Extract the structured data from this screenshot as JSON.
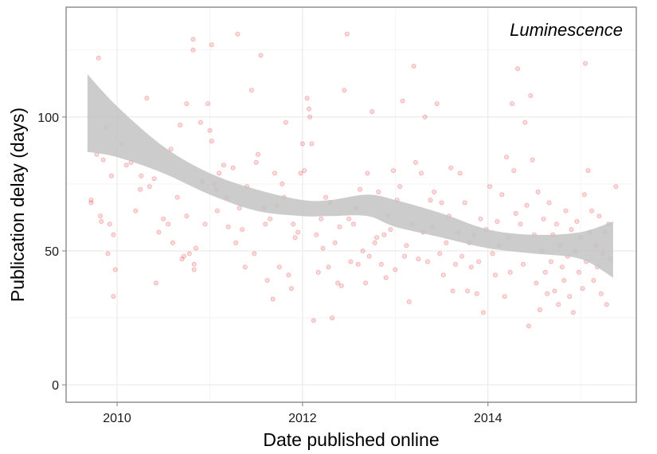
{
  "chart_data": {
    "type": "scatter",
    "title": "",
    "annotation": "Luminescence",
    "xlabel": "Date published online",
    "ylabel": "Publication delay (days)",
    "xlim": [
      2009.45,
      2015.6
    ],
    "ylim": [
      -6.5,
      141
    ],
    "xticks": [
      {
        "value": 2010,
        "label": "2010"
      },
      {
        "value": 2012,
        "label": "2012"
      },
      {
        "value": 2014,
        "label": "2014"
      }
    ],
    "yticks": [
      {
        "value": 0,
        "label": "0"
      },
      {
        "value": 50,
        "label": "50"
      },
      {
        "value": 100,
        "label": "100"
      }
    ],
    "grid": true,
    "point_color": "#e8363b",
    "band_color": "#c3c3c3",
    "smooth_band": {
      "x": [
        2009.68,
        2010.0,
        2010.5,
        2011.0,
        2011.5,
        2012.0,
        2012.3,
        2012.7,
        2013.0,
        2013.5,
        2014.0,
        2014.5,
        2015.0,
        2015.35
      ],
      "upper": [
        116,
        104,
        89,
        79,
        73,
        69,
        69,
        71,
        69,
        64,
        58,
        56,
        57,
        61
      ],
      "lower": [
        87,
        85,
        79,
        71,
        65,
        63,
        63,
        63,
        59,
        55,
        51,
        49,
        47,
        40
      ]
    },
    "points": [
      [
        2009.72,
        69
      ],
      [
        2009.72,
        68
      ],
      [
        2009.78,
        86
      ],
      [
        2009.8,
        122
      ],
      [
        2009.82,
        63
      ],
      [
        2009.83,
        61
      ],
      [
        2009.85,
        84
      ],
      [
        2009.88,
        96
      ],
      [
        2009.9,
        49
      ],
      [
        2009.92,
        60
      ],
      [
        2009.94,
        78
      ],
      [
        2009.96,
        33
      ],
      [
        2009.96,
        56
      ],
      [
        2009.98,
        43
      ],
      [
        2010.05,
        90
      ],
      [
        2010.1,
        82
      ],
      [
        2010.15,
        83
      ],
      [
        2010.2,
        65
      ],
      [
        2010.25,
        73
      ],
      [
        2010.26,
        78
      ],
      [
        2010.32,
        107
      ],
      [
        2010.35,
        74
      ],
      [
        2010.4,
        77
      ],
      [
        2010.42,
        38
      ],
      [
        2010.45,
        57
      ],
      [
        2010.5,
        62
      ],
      [
        2010.55,
        60
      ],
      [
        2010.58,
        88
      ],
      [
        2010.6,
        53
      ],
      [
        2010.65,
        70
      ],
      [
        2010.68,
        97
      ],
      [
        2010.7,
        47
      ],
      [
        2010.72,
        48
      ],
      [
        2010.75,
        105
      ],
      [
        2010.75,
        63
      ],
      [
        2010.78,
        49
      ],
      [
        2010.82,
        125
      ],
      [
        2010.82,
        129
      ],
      [
        2010.83,
        43
      ],
      [
        2010.83,
        45
      ],
      [
        2010.85,
        51
      ],
      [
        2010.9,
        98
      ],
      [
        2010.92,
        76
      ],
      [
        2010.95,
        60
      ],
      [
        2010.98,
        105
      ],
      [
        2011.0,
        95
      ],
      [
        2011.02,
        127
      ],
      [
        2011.02,
        91
      ],
      [
        2011.05,
        75
      ],
      [
        2011.07,
        73
      ],
      [
        2011.08,
        65
      ],
      [
        2011.1,
        79
      ],
      [
        2011.15,
        82
      ],
      [
        2011.18,
        70
      ],
      [
        2011.2,
        59
      ],
      [
        2011.25,
        81
      ],
      [
        2011.28,
        53
      ],
      [
        2011.3,
        131
      ],
      [
        2011.32,
        66
      ],
      [
        2011.35,
        58
      ],
      [
        2011.38,
        44
      ],
      [
        2011.4,
        74
      ],
      [
        2011.45,
        110
      ],
      [
        2011.48,
        49
      ],
      [
        2011.5,
        83
      ],
      [
        2011.52,
        86
      ],
      [
        2011.55,
        123
      ],
      [
        2011.58,
        66
      ],
      [
        2011.6,
        60
      ],
      [
        2011.62,
        39
      ],
      [
        2011.65,
        62
      ],
      [
        2011.68,
        32
      ],
      [
        2011.7,
        79
      ],
      [
        2011.72,
        67
      ],
      [
        2011.75,
        44
      ],
      [
        2011.78,
        75
      ],
      [
        2011.8,
        70
      ],
      [
        2011.82,
        98
      ],
      [
        2011.85,
        41
      ],
      [
        2011.88,
        36
      ],
      [
        2011.9,
        60
      ],
      [
        2011.92,
        55
      ],
      [
        2011.95,
        57
      ],
      [
        2011.98,
        79
      ],
      [
        2012.0,
        90
      ],
      [
        2012.02,
        80
      ],
      [
        2012.05,
        107
      ],
      [
        2012.07,
        103
      ],
      [
        2012.08,
        100
      ],
      [
        2012.1,
        90
      ],
      [
        2012.12,
        24
      ],
      [
        2012.15,
        56
      ],
      [
        2012.17,
        42
      ],
      [
        2012.2,
        62
      ],
      [
        2012.22,
        51
      ],
      [
        2012.25,
        70
      ],
      [
        2012.28,
        44
      ],
      [
        2012.3,
        68
      ],
      [
        2012.32,
        25
      ],
      [
        2012.35,
        53
      ],
      [
        2012.38,
        38
      ],
      [
        2012.4,
        59
      ],
      [
        2012.42,
        37
      ],
      [
        2012.45,
        110
      ],
      [
        2012.48,
        131
      ],
      [
        2012.5,
        62
      ],
      [
        2012.52,
        46
      ],
      [
        2012.55,
        60
      ],
      [
        2012.58,
        66
      ],
      [
        2012.6,
        45
      ],
      [
        2012.62,
        73
      ],
      [
        2012.65,
        50
      ],
      [
        2012.68,
        38
      ],
      [
        2012.7,
        79
      ],
      [
        2012.72,
        48
      ],
      [
        2012.75,
        102
      ],
      [
        2012.78,
        53
      ],
      [
        2012.8,
        55
      ],
      [
        2012.82,
        72
      ],
      [
        2012.85,
        45
      ],
      [
        2012.88,
        56
      ],
      [
        2012.9,
        40
      ],
      [
        2012.92,
        63
      ],
      [
        2012.95,
        58
      ],
      [
        2012.98,
        80
      ],
      [
        2013.0,
        43
      ],
      [
        2013.02,
        69
      ],
      [
        2013.05,
        74
      ],
      [
        2013.08,
        106
      ],
      [
        2013.1,
        48
      ],
      [
        2013.12,
        52
      ],
      [
        2013.15,
        31
      ],
      [
        2013.18,
        60
      ],
      [
        2013.2,
        119
      ],
      [
        2013.22,
        83
      ],
      [
        2013.25,
        47
      ],
      [
        2013.28,
        79
      ],
      [
        2013.3,
        57
      ],
      [
        2013.32,
        100
      ],
      [
        2013.35,
        46
      ],
      [
        2013.38,
        69
      ],
      [
        2013.4,
        59
      ],
      [
        2013.42,
        72
      ],
      [
        2013.45,
        105
      ],
      [
        2013.48,
        49
      ],
      [
        2013.5,
        68
      ],
      [
        2013.52,
        41
      ],
      [
        2013.55,
        53
      ],
      [
        2013.58,
        63
      ],
      [
        2013.6,
        81
      ],
      [
        2013.62,
        35
      ],
      [
        2013.65,
        45
      ],
      [
        2013.68,
        57
      ],
      [
        2013.7,
        79
      ],
      [
        2013.72,
        48
      ],
      [
        2013.75,
        68
      ],
      [
        2013.78,
        35
      ],
      [
        2013.8,
        53
      ],
      [
        2013.82,
        44
      ],
      [
        2013.85,
        56
      ],
      [
        2013.88,
        34
      ],
      [
        2013.9,
        46
      ],
      [
        2013.92,
        62
      ],
      [
        2013.95,
        27
      ],
      [
        2013.98,
        58
      ],
      [
        2014.02,
        74
      ],
      [
        2014.05,
        49
      ],
      [
        2014.08,
        41
      ],
      [
        2014.1,
        61
      ],
      [
        2014.12,
        52
      ],
      [
        2014.15,
        71
      ],
      [
        2014.18,
        33
      ],
      [
        2014.2,
        85
      ],
      [
        2014.22,
        55
      ],
      [
        2014.24,
        42
      ],
      [
        2014.26,
        105
      ],
      [
        2014.28,
        80
      ],
      [
        2014.3,
        64
      ],
      [
        2014.32,
        118
      ],
      [
        2014.35,
        60
      ],
      [
        2014.38,
        45
      ],
      [
        2014.4,
        98
      ],
      [
        2014.42,
        67
      ],
      [
        2014.44,
        22
      ],
      [
        2014.46,
        108
      ],
      [
        2014.48,
        84
      ],
      [
        2014.5,
        56
      ],
      [
        2014.52,
        38
      ],
      [
        2014.54,
        72
      ],
      [
        2014.56,
        28
      ],
      [
        2014.58,
        50
      ],
      [
        2014.6,
        62
      ],
      [
        2014.62,
        42
      ],
      [
        2014.64,
        34
      ],
      [
        2014.66,
        68
      ],
      [
        2014.68,
        46
      ],
      [
        2014.7,
        56
      ],
      [
        2014.72,
        35
      ],
      [
        2014.74,
        60
      ],
      [
        2014.76,
        30
      ],
      [
        2014.78,
        52
      ],
      [
        2014.8,
        44
      ],
      [
        2014.82,
        39
      ],
      [
        2014.84,
        65
      ],
      [
        2014.86,
        48
      ],
      [
        2014.88,
        33
      ],
      [
        2014.9,
        58
      ],
      [
        2014.92,
        27
      ],
      [
        2014.94,
        50
      ],
      [
        2014.96,
        61
      ],
      [
        2014.98,
        42
      ],
      [
        2015.0,
        55
      ],
      [
        2015.02,
        36
      ],
      [
        2015.04,
        71
      ],
      [
        2015.05,
        120
      ],
      [
        2015.06,
        46
      ],
      [
        2015.08,
        80
      ],
      [
        2015.1,
        57
      ],
      [
        2015.12,
        65
      ],
      [
        2015.14,
        39
      ],
      [
        2015.16,
        52
      ],
      [
        2015.18,
        44
      ],
      [
        2015.2,
        63
      ],
      [
        2015.22,
        34
      ],
      [
        2015.24,
        49
      ],
      [
        2015.26,
        57
      ],
      [
        2015.28,
        30
      ],
      [
        2015.3,
        60
      ],
      [
        2015.32,
        47
      ],
      [
        2015.38,
        74
      ]
    ]
  }
}
